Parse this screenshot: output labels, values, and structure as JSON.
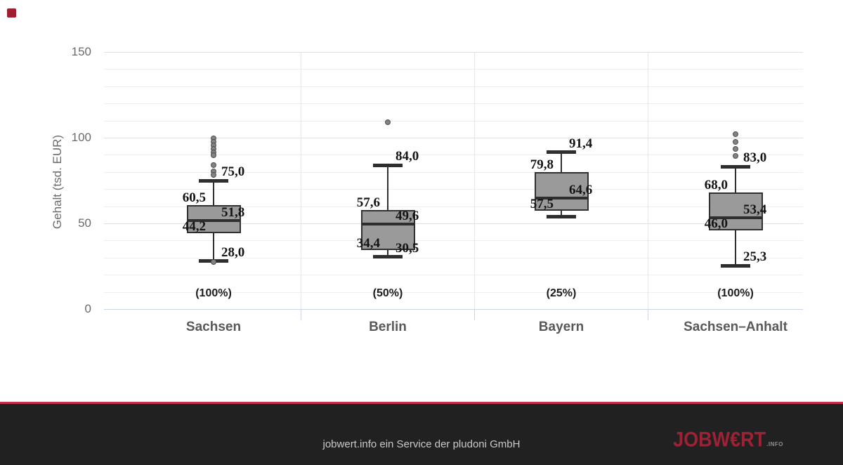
{
  "branding": {
    "corner_square_color": "#9e1f31"
  },
  "chart_data": {
    "type": "boxplot",
    "title": "",
    "ylabel": "Gehalt (tsd. EUR)",
    "ylim": [
      0,
      150
    ],
    "y_ticks": [
      0,
      50,
      100,
      150
    ],
    "grid": {
      "minor_step": 10,
      "major_step": 50,
      "grid_on": true
    },
    "legend": "none",
    "categories": [
      {
        "name": "Sachsen",
        "share_label": "(100%)",
        "low": 28.0,
        "q1": 44.2,
        "median": 51.8,
        "q3": 60.5,
        "high": 75.0,
        "labels": {
          "low": "28,0",
          "q1": "44,2",
          "median": "51,8",
          "q3": "60,5",
          "high": "75,0"
        },
        "outliers": [
          99.6,
          97.5,
          95.5,
          93.4,
          91.4,
          89.8,
          84.0,
          80.3,
          78.3,
          27.4
        ]
      },
      {
        "name": "Berlin",
        "share_label": "(50%)",
        "low": 30.5,
        "q1": 34.4,
        "median": 49.6,
        "q3": 57.6,
        "high": 84.0,
        "labels": {
          "low": "30,5",
          "q1": "34,4",
          "median": "49,6",
          "q3": "57,6",
          "high": "84,0"
        },
        "outliers": [
          109.0
        ]
      },
      {
        "name": "Bayern",
        "share_label": "(25%)",
        "low": 54.0,
        "q1": 57.5,
        "median": 64.6,
        "q3": 79.8,
        "high": 91.4,
        "labels": {
          "low": "",
          "q1": "57,5",
          "median": "64,6",
          "q3": "79,8",
          "high": "91,4"
        },
        "outliers": []
      },
      {
        "name": "Sachsen–Anhalt",
        "share_label": "(100%)",
        "low": 25.3,
        "q1": 46.0,
        "median": 53.4,
        "q3": 68.0,
        "high": 83.0,
        "labels": {
          "low": "25,3",
          "q1": "46,0",
          "median": "53,4",
          "q3": "68,0",
          "high": "83,0"
        },
        "outliers": [
          102.0,
          97.5,
          93.5,
          89.5
        ]
      }
    ]
  },
  "footer": {
    "service_text": "jobwert.info ein Service der pludoni GmbH",
    "logo_text": "JOBW€RT",
    "logo_suffix": ".INFO",
    "divider_color": "#c73150",
    "bar_color": "#212121",
    "logo_color": "#9e2135"
  }
}
